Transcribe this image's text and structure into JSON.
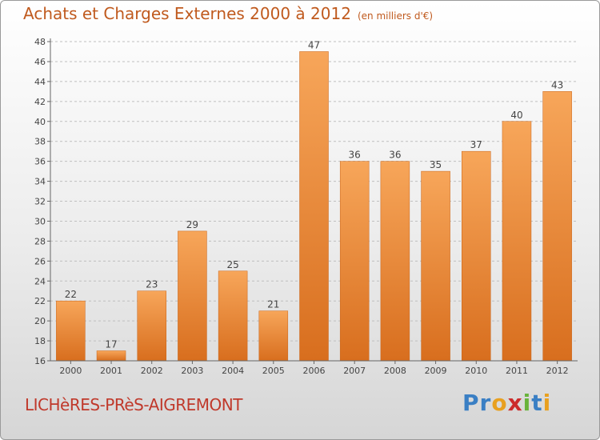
{
  "header": {
    "title": "Achats et Charges Externes 2000 à 2012",
    "unit": "(en milliers d'€)"
  },
  "footer": {
    "place": "LICHèRES-PRèS-AIGREMONT",
    "logo_letters": [
      {
        "ch": "P",
        "color": "#3a7fc4"
      },
      {
        "ch": "r",
        "color": "#3a7fc4"
      },
      {
        "ch": "o",
        "color": "#e8a020"
      },
      {
        "ch": "x",
        "color": "#cc2b2b"
      },
      {
        "ch": "i",
        "color": "#69b33b"
      },
      {
        "ch": "t",
        "color": "#3a7fc4"
      },
      {
        "ch": "i",
        "color": "#e8a020"
      }
    ]
  },
  "colors": {
    "bar_top": "#f7a65a",
    "bar_bottom": "#d86e1e",
    "grid": "#bfbfbf",
    "axis": "#666666",
    "title": "#c05a1e"
  },
  "chart_data": {
    "type": "bar",
    "categories": [
      "2000",
      "2001",
      "2002",
      "2003",
      "2004",
      "2005",
      "2006",
      "2007",
      "2008",
      "2009",
      "2010",
      "2011",
      "2012"
    ],
    "values": [
      22,
      17,
      23,
      29,
      25,
      21,
      47,
      36,
      36,
      35,
      37,
      40,
      43
    ],
    "ylim": [
      16,
      48
    ],
    "yticks": [
      16,
      18,
      20,
      22,
      24,
      26,
      28,
      30,
      32,
      34,
      36,
      38,
      40,
      42,
      44,
      46,
      48
    ],
    "grid": true
  }
}
